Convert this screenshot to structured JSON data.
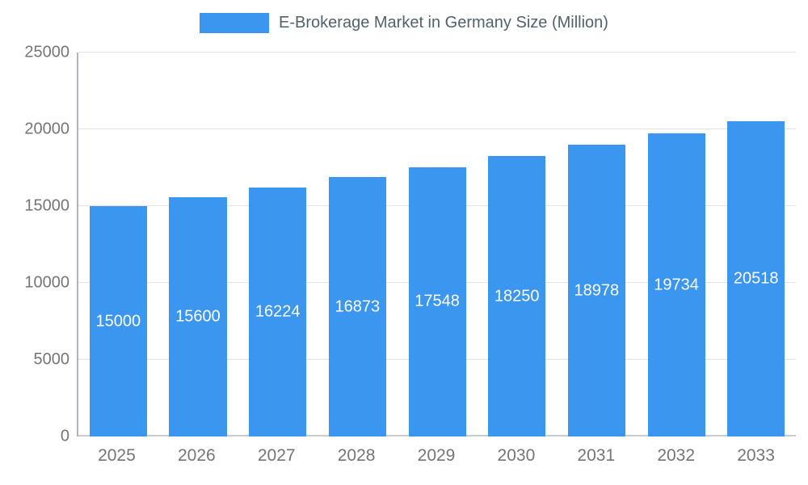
{
  "legend": {
    "title": "E-Brokerage Market in Germany Size (Million)"
  },
  "colors": {
    "bar": "#3B96F0",
    "title_text": "#51626F",
    "axis_text": "#757575",
    "gridline": "#E3E3E3",
    "axis_line": "#AEB4B9",
    "value_label": "#FFFFFF"
  },
  "chart_data": {
    "type": "bar",
    "title": "E-Brokerage Market in Germany Size (Million)",
    "categories": [
      "2025",
      "2026",
      "2027",
      "2028",
      "2029",
      "2030",
      "2031",
      "2032",
      "2033"
    ],
    "values": [
      15000,
      15600,
      16224,
      16873,
      17548,
      18250,
      18978,
      19734,
      20518
    ],
    "xlabel": "",
    "ylabel": "",
    "ylim": [
      0,
      25000
    ],
    "yticks": [
      0,
      5000,
      10000,
      15000,
      20000,
      25000
    ],
    "grid": true,
    "legend_position": "top",
    "value_labels": "inside-center-white"
  }
}
